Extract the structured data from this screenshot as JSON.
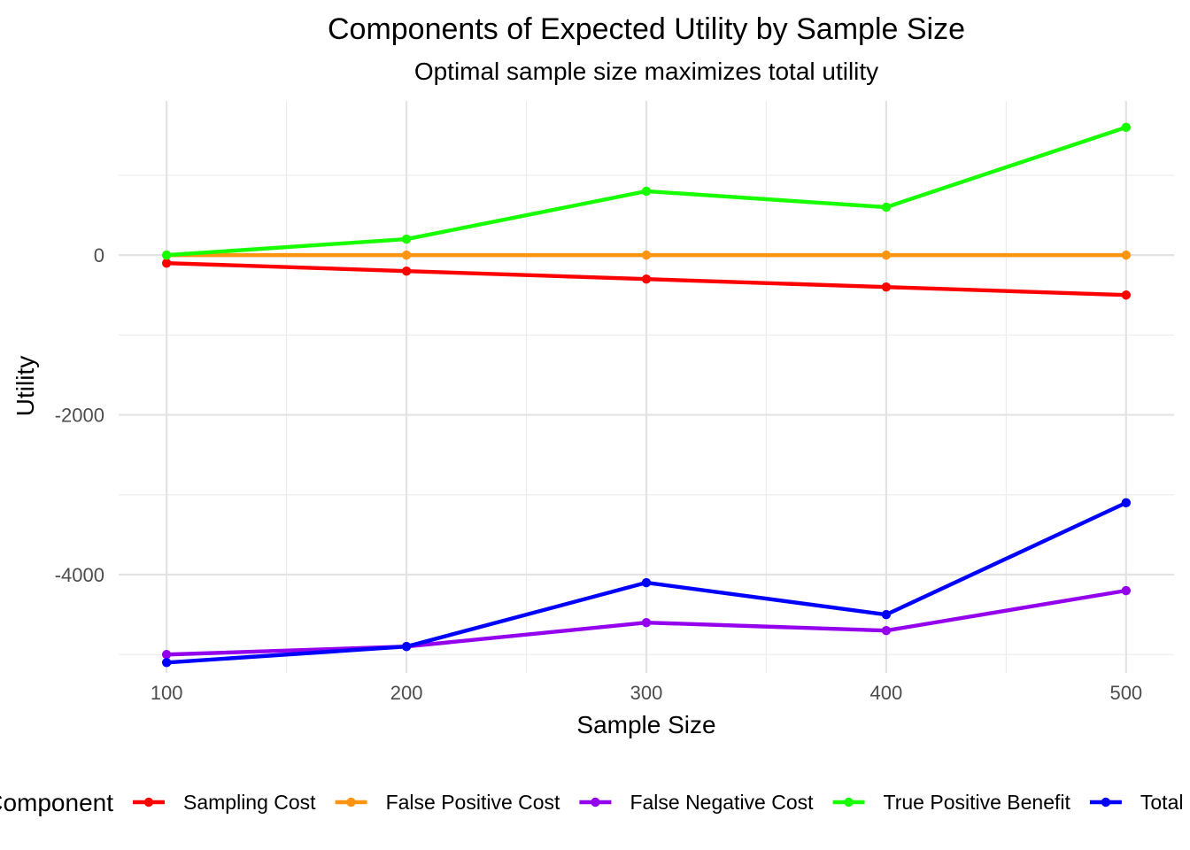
{
  "chart_data": {
    "type": "line",
    "title": "Components of Expected Utility by Sample Size",
    "subtitle": "Optimal sample size maximizes total utility",
    "xlabel": "Sample Size",
    "ylabel": "Utility",
    "x": [
      100,
      200,
      300,
      400,
      500
    ],
    "x_ticks": [
      "100",
      "200",
      "300",
      "400",
      "500"
    ],
    "xlim": [
      80,
      520
    ],
    "y_ticks": [
      {
        "value": 0,
        "label": "0"
      },
      {
        "value": -2000,
        "label": "-2000"
      },
      {
        "value": -4000,
        "label": "-4000"
      }
    ],
    "ylim": [
      -5230,
      1930
    ],
    "grid": true,
    "legend_title": "Component",
    "legend_position": "bottom",
    "series": [
      {
        "name": "Sampling Cost",
        "color": "#ff0000",
        "values": [
          -100,
          -200,
          -300,
          -400,
          -500
        ]
      },
      {
        "name": "False Positive Cost",
        "color": "#ff9410",
        "values": [
          0,
          0,
          0,
          0,
          0
        ]
      },
      {
        "name": "False Negative Cost",
        "color": "#9400ee",
        "values": [
          -5000,
          -4900,
          -4600,
          -4700,
          -4200
        ]
      },
      {
        "name": "True Positive Benefit",
        "color": "#18ff00",
        "values": [
          0,
          200,
          800,
          600,
          1600
        ]
      },
      {
        "name": "Total Utility",
        "color": "#0000ff",
        "values": [
          -5100,
          -4900,
          -4100,
          -4500,
          -3100
        ]
      }
    ]
  }
}
